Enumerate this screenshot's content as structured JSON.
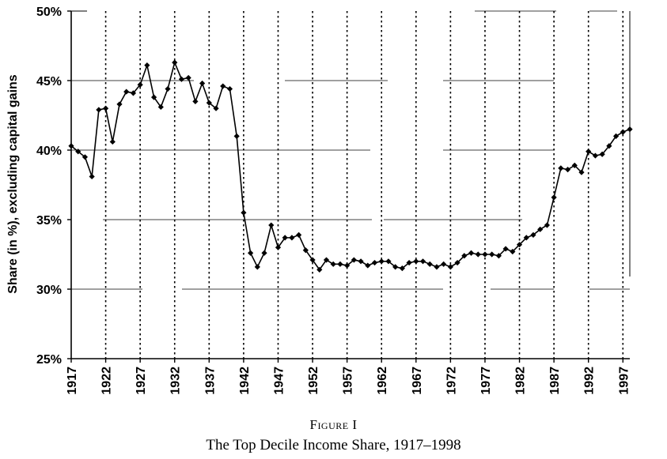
{
  "figure": {
    "label": "Figure I",
    "caption": "The Top Decile Income Share, 1917–1998"
  },
  "chart_data": {
    "type": "line",
    "title": "",
    "xlabel": "",
    "ylabel": "Share (in %), excluding capital gains",
    "xlim": [
      1917,
      1998
    ],
    "ylim": [
      25,
      50
    ],
    "x_ticks": [
      "1917",
      "1922",
      "1927",
      "1932",
      "1937",
      "1942",
      "1947",
      "1952",
      "1957",
      "1962",
      "1967",
      "1972",
      "1977",
      "1982",
      "1987",
      "1992",
      "1997"
    ],
    "y_ticks": [
      "25%",
      "30%",
      "35%",
      "40%",
      "45%",
      "50%"
    ],
    "grid": "vertical dotted lines at x ticks; partial horizontal lines at y ticks",
    "marker": "diamond",
    "line_color": "#000000",
    "series": [
      {
        "x": [
          1917,
          1918,
          1919,
          1920,
          1921,
          1922,
          1923,
          1924,
          1925,
          1926,
          1927,
          1928,
          1929,
          1930,
          1931,
          1932,
          1933,
          1934,
          1935,
          1936,
          1937,
          1938,
          1939,
          1940,
          1941,
          1942,
          1943,
          1944,
          1945,
          1946,
          1947,
          1948,
          1949,
          1950,
          1951,
          1952,
          1953,
          1954,
          1955,
          1956,
          1957,
          1958,
          1959,
          1960,
          1961,
          1962,
          1963,
          1964,
          1965,
          1966,
          1967,
          1968,
          1969,
          1970,
          1971,
          1972,
          1973,
          1974,
          1975,
          1976,
          1977,
          1978,
          1979,
          1980,
          1981,
          1982,
          1983,
          1984,
          1985,
          1986,
          1987,
          1988,
          1989,
          1990,
          1991,
          1992,
          1993,
          1994,
          1995,
          1996,
          1997,
          1998
        ],
        "values": [
          40.3,
          39.9,
          39.5,
          38.1,
          42.9,
          43.0,
          40.6,
          43.3,
          44.2,
          44.1,
          44.7,
          46.1,
          43.8,
          43.1,
          44.4,
          46.3,
          45.1,
          45.2,
          43.5,
          44.8,
          43.4,
          43.0,
          44.6,
          44.4,
          41.0,
          35.5,
          32.6,
          31.6,
          32.6,
          34.6,
          33.0,
          33.7,
          33.7,
          33.9,
          32.8,
          32.1,
          31.4,
          32.1,
          31.8,
          31.8,
          31.7,
          32.1,
          32.0,
          31.7,
          31.9,
          32.0,
          32.0,
          31.6,
          31.5,
          31.9,
          32.0,
          32.0,
          31.8,
          31.6,
          31.8,
          31.6,
          31.9,
          32.4,
          32.6,
          32.5,
          32.5,
          32.5,
          32.4,
          32.9,
          32.7,
          33.2,
          33.7,
          33.9,
          34.3,
          34.6,
          36.6,
          38.7,
          38.6,
          38.9,
          38.4,
          39.9,
          39.6,
          39.7,
          40.3,
          41.0,
          41.3,
          41.5
        ]
      }
    ]
  }
}
